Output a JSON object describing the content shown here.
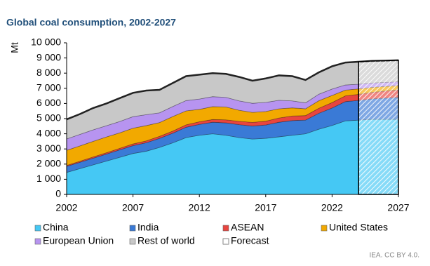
{
  "chart_data": {
    "type": "stacked_area",
    "title": "Global coal consumption, 2002-2027",
    "y_label": "Mt",
    "source": "IEA. CC BY 4.0.",
    "x": [
      2002,
      2003,
      2004,
      2005,
      2006,
      2007,
      2008,
      2009,
      2010,
      2011,
      2012,
      2013,
      2014,
      2015,
      2016,
      2017,
      2018,
      2019,
      2020,
      2021,
      2022,
      2023,
      2024,
      2025,
      2026,
      2027
    ],
    "series": [
      {
        "name": "China",
        "color": "#45c8f4",
        "values": [
          1450,
          1700,
          1950,
          2200,
          2450,
          2700,
          2850,
          3100,
          3400,
          3750,
          3900,
          4000,
          3900,
          3750,
          3650,
          3700,
          3800,
          3900,
          4000,
          4300,
          4550,
          4850,
          4900,
          4950,
          4950,
          4950
        ]
      },
      {
        "name": "India",
        "color": "#3a7ad6",
        "values": [
          400,
          420,
          440,
          460,
          490,
          520,
          560,
          600,
          640,
          680,
          720,
          760,
          820,
          850,
          860,
          880,
          960,
          970,
          900,
          1050,
          1150,
          1270,
          1300,
          1350,
          1400,
          1450
        ]
      },
      {
        "name": "ASEAN",
        "color": "#e8453f",
        "values": [
          60,
          70,
          80,
          90,
          100,
          110,
          120,
          130,
          140,
          160,
          170,
          180,
          200,
          220,
          240,
          250,
          280,
          300,
          300,
          330,
          360,
          380,
          400,
          430,
          470,
          500
        ]
      },
      {
        "name": "United States",
        "color": "#f2a900",
        "values": [
          1000,
          1010,
          1030,
          1040,
          1020,
          1040,
          1010,
          910,
          960,
          920,
          820,
          850,
          850,
          730,
          660,
          640,
          610,
          540,
          450,
          500,
          470,
          380,
          360,
          330,
          300,
          280
        ]
      },
      {
        "name": "European Union",
        "color": "#b794f0",
        "values": [
          750,
          760,
          760,
          740,
          750,
          760,
          720,
          640,
          660,
          680,
          680,
          660,
          630,
          620,
          600,
          600,
          560,
          460,
          390,
          430,
          420,
          340,
          310,
          290,
          270,
          250
        ]
      },
      {
        "name": "Rest of world",
        "color": "#c8c8c8",
        "values": [
          1290,
          1340,
          1440,
          1470,
          1540,
          1570,
          1590,
          1520,
          1550,
          1610,
          1610,
          1550,
          1550,
          1580,
          1490,
          1580,
          1640,
          1630,
          1510,
          1440,
          1500,
          1480,
          1480,
          1450,
          1430,
          1420
        ]
      }
    ],
    "forecast": {
      "name": "Forecast",
      "start": 2024
    },
    "xlim": [
      2002,
      2027
    ],
    "xticks": [
      2002,
      2007,
      2012,
      2017,
      2022,
      2027
    ],
    "ylim": [
      0,
      10000
    ],
    "yticks": [
      0,
      {
        "value": 1000,
        "label": "1 000"
      },
      {
        "value": 2000,
        "label": "2 000"
      },
      {
        "value": 3000,
        "label": "3 000"
      },
      {
        "value": 4000,
        "label": "4 000"
      },
      {
        "value": 5000,
        "label": "5 000"
      },
      {
        "value": 6000,
        "label": "6 000"
      },
      {
        "value": 7000,
        "label": "7 000"
      },
      {
        "value": 8000,
        "label": "8 000"
      },
      {
        "value": 9000,
        "label": "9 000"
      },
      {
        "value": 10000,
        "label": "10 000"
      }
    ]
  }
}
